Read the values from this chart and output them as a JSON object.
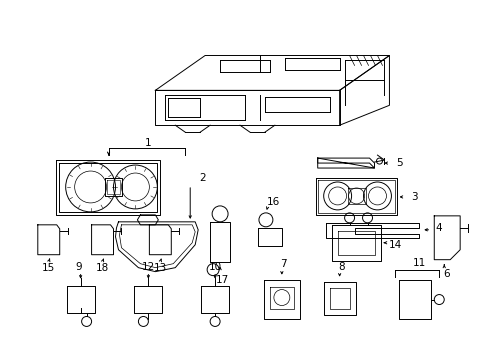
{
  "bg_color": "#ffffff",
  "line_color": "#000000",
  "lw": 0.7,
  "fig_width": 4.89,
  "fig_height": 3.6,
  "dpi": 100
}
